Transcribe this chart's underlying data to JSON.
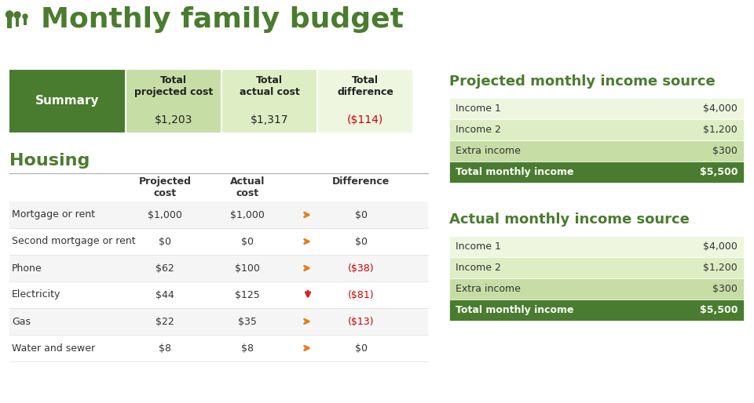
{
  "title": "Monthly family budget",
  "title_color": "#4a7c2f",
  "title_fontsize": 26,
  "bg_color": "#ffffff",
  "dark_green": "#4a7c2f",
  "light_green1": "#c6dea6",
  "light_green2": "#ddeec4",
  "light_green3": "#eef6e0",
  "summary": {
    "label": "Summary",
    "col1_label": "Total\nprojected cost",
    "col2_label": "Total\nactual cost",
    "col3_label": "Total\ndifference",
    "col1_val": "$1,203",
    "col2_val": "$1,317",
    "col3_val": "($114)"
  },
  "housing_rows": [
    {
      "name": "Mortgage or rent",
      "proj": "$1,000",
      "actual": "$1,000",
      "arrow": "right",
      "diff": "$0",
      "diff_neg": false
    },
    {
      "name": "Second mortgage or rent",
      "proj": "$0",
      "actual": "$0",
      "arrow": "right",
      "diff": "$0",
      "diff_neg": false
    },
    {
      "name": "Phone",
      "proj": "$62",
      "actual": "$100",
      "arrow": "right",
      "diff": "($38)",
      "diff_neg": true
    },
    {
      "name": "Electricity",
      "proj": "$44",
      "actual": "$125",
      "arrow": "down",
      "diff": "($81)",
      "diff_neg": true
    },
    {
      "name": "Gas",
      "proj": "$22",
      "actual": "$35",
      "arrow": "right",
      "diff": "($13)",
      "diff_neg": true
    },
    {
      "name": "Water and sewer",
      "proj": "$8",
      "actual": "$8",
      "arrow": "right",
      "diff": "$0",
      "diff_neg": false
    }
  ],
  "projected_income": {
    "title": "Projected monthly income source",
    "rows": [
      {
        "label": "Income 1",
        "value": "$4,000"
      },
      {
        "label": "Income 2",
        "value": "$1,200"
      },
      {
        "label": "Extra income",
        "value": "$300"
      }
    ],
    "total_label": "Total monthly income",
    "total_value": "$5,500"
  },
  "actual_income": {
    "title": "Actual monthly income source",
    "rows": [
      {
        "label": "Income 1",
        "value": "$4,000"
      },
      {
        "label": "Income 2",
        "value": "$1,200"
      },
      {
        "label": "Extra income",
        "value": "$300"
      }
    ],
    "total_label": "Total monthly income",
    "total_value": "$5,500"
  }
}
